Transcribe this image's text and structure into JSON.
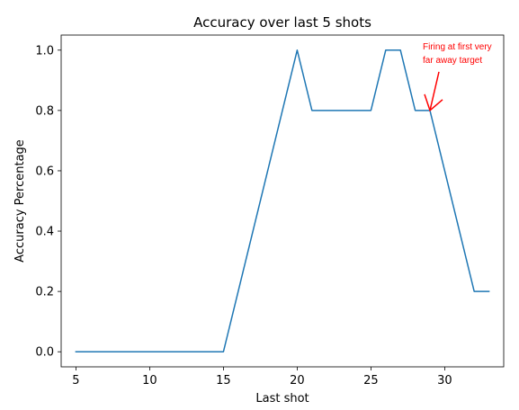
{
  "chart_data": {
    "type": "line",
    "title": "Accuracy over last 5 shots",
    "xlabel": "Last shot",
    "ylabel": "Accuracy Percentage",
    "xlim": [
      4,
      34
    ],
    "ylim": [
      -0.05,
      1.05
    ],
    "xticks": [
      5,
      10,
      15,
      20,
      25,
      30
    ],
    "xtick_labels": [
      "5",
      "10",
      "15",
      "20",
      "25",
      "30"
    ],
    "yticks": [
      0.0,
      0.2,
      0.4,
      0.6,
      0.8,
      1.0
    ],
    "ytick_labels": [
      "0.0",
      "0.2",
      "0.4",
      "0.6",
      "0.8",
      "1.0"
    ],
    "grid": false,
    "series": [
      {
        "color": "#1f77b4",
        "x": [
          5,
          6,
          7,
          8,
          9,
          10,
          11,
          12,
          13,
          14,
          15,
          16,
          17,
          18,
          19,
          20,
          21,
          22,
          23,
          24,
          25,
          26,
          27,
          28,
          29,
          30,
          31,
          32,
          33
        ],
        "y": [
          0,
          0,
          0,
          0,
          0,
          0,
          0,
          0,
          0,
          0,
          0,
          0.2,
          0.4,
          0.6,
          0.8,
          1.0,
          0.8,
          0.8,
          0.8,
          0.8,
          0.8,
          1.0,
          1.0,
          0.8,
          0.8,
          0.6,
          0.4,
          0.2,
          0.2
        ]
      }
    ],
    "annotations": [
      {
        "text_lines": [
          "Firing at first very",
          "far away target"
        ],
        "color": "#ff0000",
        "arrow_to": {
          "x": 29,
          "y": 0.8
        }
      }
    ]
  }
}
